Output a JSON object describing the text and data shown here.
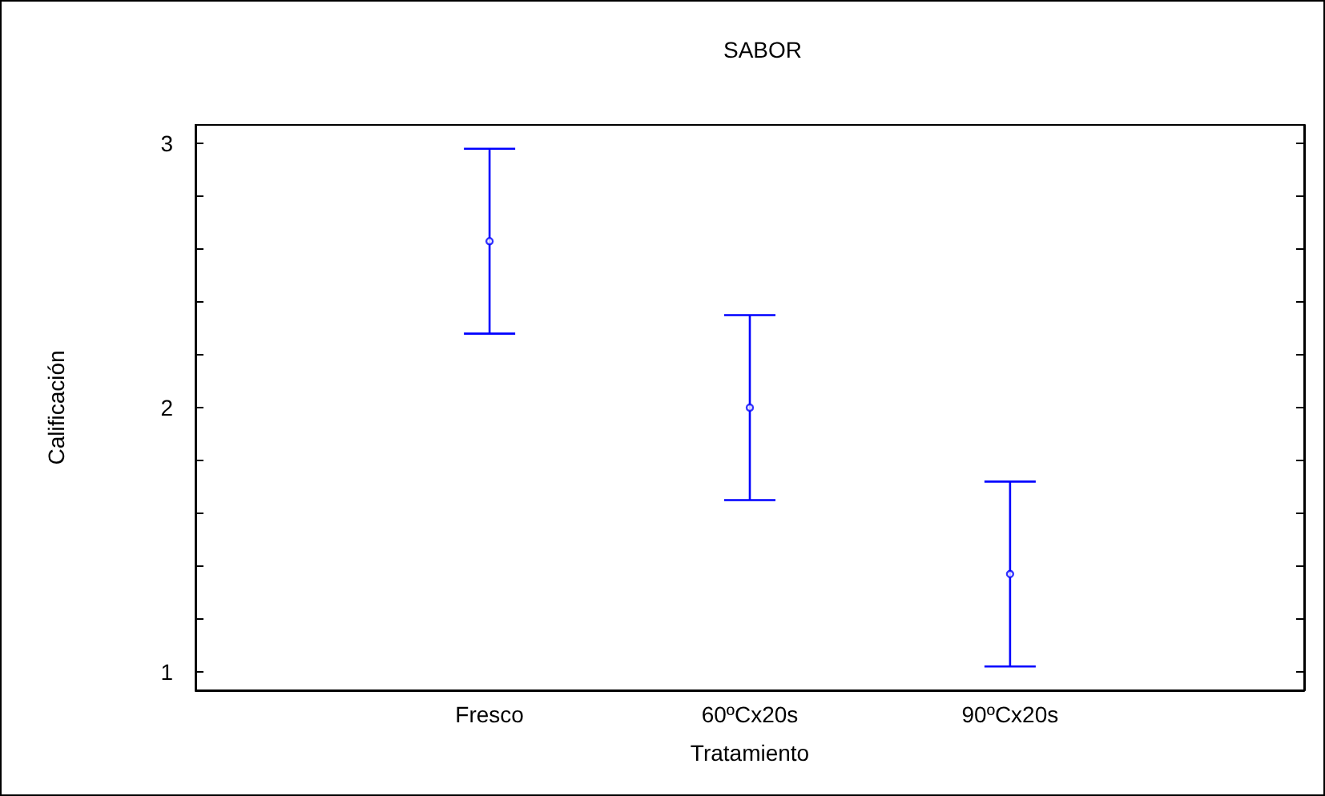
{
  "chart_data": {
    "type": "scatter",
    "title": "SABOR",
    "xlabel": "Tratamiento",
    "ylabel": "Calificación",
    "categories": [
      "Fresco",
      "60ºCx20s",
      "90ºCx20s"
    ],
    "series": [
      {
        "color": "#0000ff",
        "values": [
          2.63,
          2.0,
          1.37
        ],
        "errors": [
          0.35,
          0.35,
          0.35
        ]
      }
    ],
    "marker": "circle",
    "ylim": [
      0.93,
      3.07
    ],
    "yticks": [
      1,
      {
        "value": 1.2,
        "label": null
      },
      {
        "value": 1.4,
        "label": null
      },
      {
        "value": 1.6,
        "label": null
      },
      {
        "value": 1.8,
        "label": null
      },
      2,
      {
        "value": 2.2,
        "label": null
      },
      {
        "value": 2.4,
        "label": null
      },
      {
        "value": 2.6,
        "label": null
      },
      {
        "value": 2.8,
        "label": null
      },
      3
    ],
    "grid": false,
    "legend": false
  }
}
